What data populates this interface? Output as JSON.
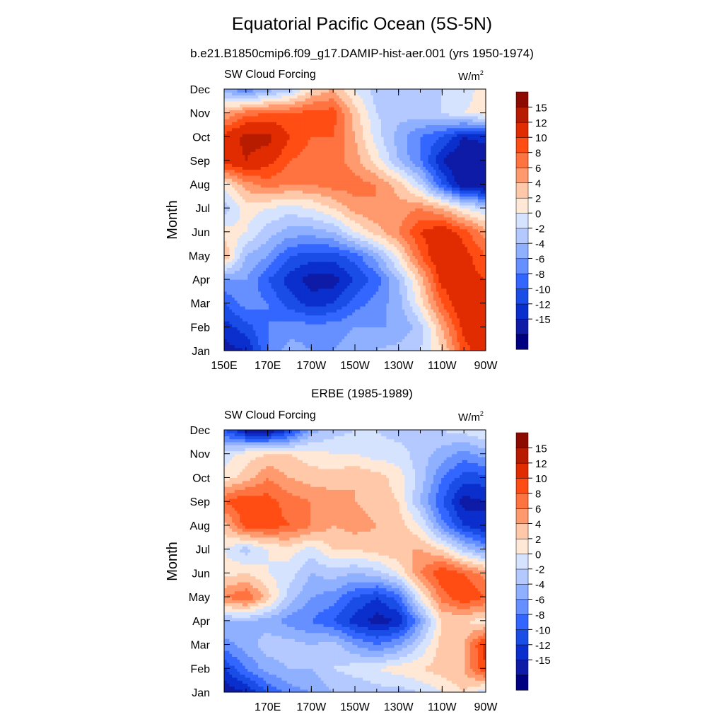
{
  "title": "Equatorial Pacific Ocean (5S-5N)",
  "subtitle": "b.e21.B1850cmip6.f09_g17.DAMIP-hist-aer.001 (yrs 1950-1974)",
  "second_title": "ERBE (1985-1989)",
  "colors": {
    "levels": [
      "#000080",
      "#0d1ba6",
      "#0a2fcc",
      "#1a4ce6",
      "#3366ff",
      "#6690ff",
      "#8fb0ff",
      "#b3c9ff",
      "#d6e3ff",
      "#ffe8d6",
      "#ffc8a8",
      "#ff9a6e",
      "#ff7340",
      "#ff4d14",
      "#e02c00",
      "#b81c00",
      "#8c0a00"
    ]
  },
  "chart_data": [
    {
      "type": "heatmap",
      "name": "model",
      "left_label": "SW Cloud Forcing",
      "units_base": "W/m",
      "units_exp": "2",
      "ylabel": "Month",
      "xlabel": "",
      "x_range": [
        150,
        270
      ],
      "x_ticks": [
        "150E",
        "170E",
        "170W",
        "150W",
        "130W",
        "110W",
        "90W"
      ],
      "y_ticks": [
        "Jan",
        "Feb",
        "Mar",
        "Apr",
        "May",
        "Jun",
        "Jul",
        "Aug",
        "Sep",
        "Oct",
        "Nov",
        "Dec"
      ],
      "colorbar_labels": [
        "15",
        "12",
        "10",
        "8",
        "6",
        "4",
        "2",
        "0",
        "-2",
        "-4",
        "-6",
        "-8",
        "-10",
        "-12",
        "-15"
      ],
      "grid_x_lon": [
        150,
        160,
        170,
        180,
        190,
        200,
        210,
        220,
        230,
        240,
        250,
        260,
        270
      ],
      "values": [
        [
          -13,
          -12,
          -6,
          -3,
          -4,
          -4,
          -3,
          -2,
          -1,
          0,
          4,
          11,
          14
        ],
        [
          -11,
          -9,
          -6,
          -5,
          -5,
          -5,
          -4,
          -4,
          -4,
          -1,
          6,
          13,
          14
        ],
        [
          -8,
          -5,
          -6,
          -9,
          -11,
          -10,
          -7,
          -5,
          -3,
          3,
          10,
          15,
          13
        ],
        [
          -4,
          -4,
          -8,
          -11,
          -13,
          -13,
          -10,
          -7,
          -2,
          5,
          13,
          13,
          12
        ],
        [
          6,
          -2,
          -4,
          -8,
          -9,
          -9,
          -7,
          -3,
          3,
          10,
          15,
          13,
          10
        ],
        [
          3,
          2,
          -1,
          -3,
          -3,
          -2,
          2,
          5,
          8,
          12,
          14,
          11,
          7
        ],
        [
          -1,
          3,
          2,
          1,
          2,
          4,
          7,
          8,
          7,
          8,
          6,
          2,
          0
        ],
        [
          3,
          7,
          9,
          8,
          8,
          9,
          9,
          8,
          5,
          0,
          -8,
          -14,
          -15
        ],
        [
          13,
          15,
          13,
          10,
          9,
          9,
          7,
          3,
          -2,
          -6,
          -12,
          -15,
          -15
        ],
        [
          13,
          16,
          16,
          12,
          10,
          10,
          6,
          1,
          -3,
          -6,
          -8,
          -12,
          -11
        ],
        [
          6,
          9,
          10,
          10,
          11,
          11,
          5,
          0,
          -1,
          -1,
          0,
          2,
          3
        ],
        [
          -3,
          -6,
          -3,
          -1,
          4,
          6,
          2,
          -1,
          -1,
          -1,
          0,
          1,
          3
        ]
      ]
    },
    {
      "type": "heatmap",
      "name": "obs",
      "left_label": "SW Cloud Forcing",
      "units_base": "W/m",
      "units_exp": "2",
      "ylabel": "Month",
      "xlabel": "",
      "x_range": [
        150,
        270
      ],
      "x_ticks": [
        "170E",
        "170W",
        "150W",
        "130W",
        "110W",
        "90W"
      ],
      "y_ticks": [
        "Jan",
        "Feb",
        "Mar",
        "Apr",
        "May",
        "Jun",
        "Jul",
        "Aug",
        "Sep",
        "Oct",
        "Nov",
        "Dec"
      ],
      "colorbar_labels": [
        "15",
        "12",
        "10",
        "8",
        "6",
        "4",
        "2",
        "0",
        "-2",
        "-4",
        "-6",
        "-8",
        "-10",
        "-12",
        "-15"
      ],
      "grid_x_lon": [
        150,
        160,
        170,
        180,
        190,
        200,
        210,
        220,
        230,
        240,
        250,
        260,
        270
      ],
      "values": [
        [
          -14,
          -12,
          -8,
          -5,
          -4,
          -2,
          -2,
          -1,
          -1,
          0,
          2,
          4,
          0
        ],
        [
          -10,
          -6,
          -3,
          -2,
          -2,
          0,
          1,
          2,
          3,
          4,
          5,
          6,
          12
        ],
        [
          -5,
          -3,
          -1,
          -1,
          -2,
          -1,
          -4,
          -6,
          -4,
          0,
          5,
          6,
          13
        ],
        [
          -2,
          -2,
          -3,
          -5,
          -6,
          -8,
          -11,
          -13,
          -12,
          -4,
          4,
          4,
          3
        ],
        [
          8,
          10,
          5,
          -1,
          -4,
          -5,
          -8,
          -10,
          -7,
          2,
          9,
          12,
          10
        ],
        [
          3,
          4,
          2,
          1,
          -2,
          -1,
          -2,
          -1,
          2,
          8,
          12,
          10,
          7
        ],
        [
          2,
          -1,
          2,
          3,
          1,
          4,
          4,
          5,
          6,
          6,
          4,
          -1,
          -4
        ],
        [
          5,
          11,
          11,
          10,
          8,
          6,
          7,
          6,
          5,
          2,
          -5,
          -10,
          -12
        ],
        [
          10,
          12,
          11,
          9,
          8,
          7,
          6,
          5,
          4,
          -2,
          -8,
          -13,
          -12
        ],
        [
          3,
          5,
          8,
          6,
          5,
          5,
          6,
          5,
          3,
          -1,
          -6,
          -9,
          -9
        ],
        [
          1,
          3,
          4,
          4,
          3,
          2,
          2,
          1,
          1,
          -1,
          -3,
          -5,
          -3
        ],
        [
          -8,
          -13,
          -14,
          -10,
          -3,
          -1,
          0,
          0,
          -1,
          -1,
          0,
          1,
          2
        ]
      ]
    }
  ]
}
